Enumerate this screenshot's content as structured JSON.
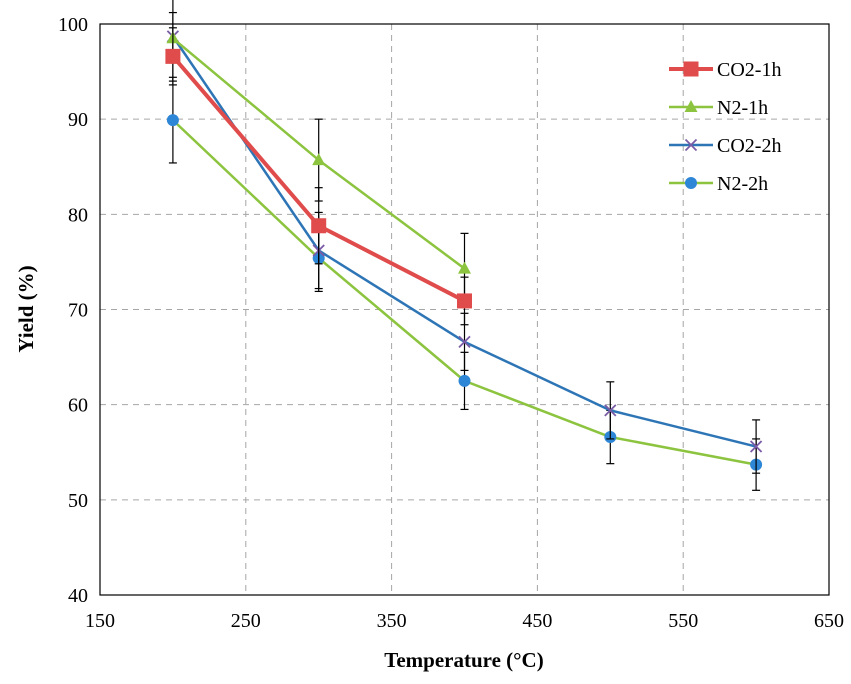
{
  "chart_data": {
    "type": "line",
    "title": "",
    "xlabel": "Temperature (°C)",
    "ylabel": "Yield (%)",
    "xlim": [
      150,
      650
    ],
    "ylim": [
      40,
      100
    ],
    "x_ticks": [
      "150",
      "250",
      "350",
      "450",
      "550",
      "650"
    ],
    "y_ticks": [
      "40",
      "50",
      "60",
      "70",
      "80",
      "90",
      "100"
    ],
    "grid": true,
    "legend_position": "top-right",
    "series": [
      {
        "name": "CO2-1h",
        "color": "#e04b4b",
        "marker": "square",
        "x": [
          200,
          300,
          400
        ],
        "y": [
          96.6,
          78.8,
          70.9
        ],
        "err": [
          3.0,
          4.0,
          2.5
        ]
      },
      {
        "name": "N2-1h",
        "color": "#8cc43f",
        "marker": "triangle",
        "x": [
          200,
          300,
          400
        ],
        "y": [
          98.5,
          85.7,
          74.3
        ],
        "err": [
          4.5,
          4.3,
          3.7
        ]
      },
      {
        "name": "CO2-2h",
        "color": "#2e75b6",
        "marker": "x",
        "x": [
          200,
          300,
          400,
          500,
          600
        ],
        "y": [
          98.7,
          76.2,
          66.6,
          59.4,
          55.6
        ],
        "err": [
          2.5,
          4.0,
          3.0,
          3.0,
          2.8
        ]
      },
      {
        "name": "N2-2h",
        "color": "#8cc43f",
        "marker": "circle",
        "point_color": "#2e86d6",
        "x": [
          200,
          300,
          400,
          500,
          600
        ],
        "y": [
          89.9,
          75.4,
          62.5,
          56.6,
          53.7
        ],
        "err": [
          4.5,
          3.5,
          3.0,
          2.8,
          2.7
        ]
      }
    ]
  }
}
